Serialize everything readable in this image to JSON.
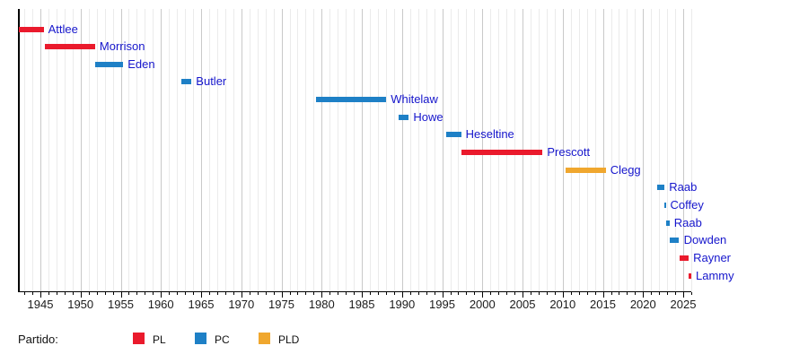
{
  "chart_data": {
    "type": "timeline",
    "title": "",
    "xlabel": "",
    "ylabel": "",
    "axis": {
      "min_year": 1942.32,
      "max_year": 2026.0,
      "major_tick_years": [
        1945,
        1950,
        1955,
        1960,
        1965,
        1970,
        1975,
        1980,
        1985,
        1990,
        1995,
        2000,
        2005,
        2010,
        2015,
        2020,
        2025
      ],
      "minor_tick_step": 1,
      "grid": "on"
    },
    "bars": [
      {
        "label": "Attlee",
        "party": "PL",
        "start": 1942.32,
        "end": 1945.4
      },
      {
        "label": "Morrison",
        "party": "PL",
        "start": 1945.55,
        "end": 1951.8
      },
      {
        "label": "Eden",
        "party": "PC",
        "start": 1951.8,
        "end": 1955.3
      },
      {
        "label": "Butler",
        "party": "PC",
        "start": 1962.55,
        "end": 1963.8
      },
      {
        "label": "Whitelaw",
        "party": "PC",
        "start": 1979.35,
        "end": 1988.04
      },
      {
        "label": "Howe",
        "party": "PC",
        "start": 1989.55,
        "end": 1990.85
      },
      {
        "label": "Heseltine",
        "party": "PC",
        "start": 1995.5,
        "end": 1997.35
      },
      {
        "label": "Prescott",
        "party": "PL",
        "start": 1997.35,
        "end": 2007.5
      },
      {
        "label": "Clegg",
        "party": "PLD",
        "start": 2010.35,
        "end": 2015.35
      },
      {
        "label": "Raab",
        "party": "PC",
        "start": 2021.7,
        "end": 2022.68
      },
      {
        "label": "Coffey",
        "party": "PC",
        "start": 2022.68,
        "end": 2022.82
      },
      {
        "label": "Raab",
        "party": "PC",
        "start": 2022.82,
        "end": 2023.3
      },
      {
        "label": "Dowden",
        "party": "PC",
        "start": 2023.3,
        "end": 2024.5
      },
      {
        "label": "Rayner",
        "party": "PL",
        "start": 2024.5,
        "end": 2025.68
      },
      {
        "label": "Lammy",
        "party": "PL",
        "start": 2025.68,
        "end": 2026.0
      }
    ],
    "party_colors": {
      "PL": "#EA1A2C",
      "PC": "#1E80C6",
      "PLD": "#F0A72E"
    },
    "legend_position": "bottom"
  },
  "legend": {
    "title": "Partido:",
    "items": [
      {
        "label": "PL",
        "color": "#EA1A2C"
      },
      {
        "label": "PC",
        "color": "#1E80C6"
      },
      {
        "label": "PLD",
        "color": "#F0A72E"
      }
    ]
  },
  "colors": {
    "bar_label_text": "#1616CC",
    "grid_minor": "#EBEBEB",
    "grid_major": "#C9C9C9",
    "axis_line": "#000000",
    "tick_label_text": "#1B1B1B"
  }
}
